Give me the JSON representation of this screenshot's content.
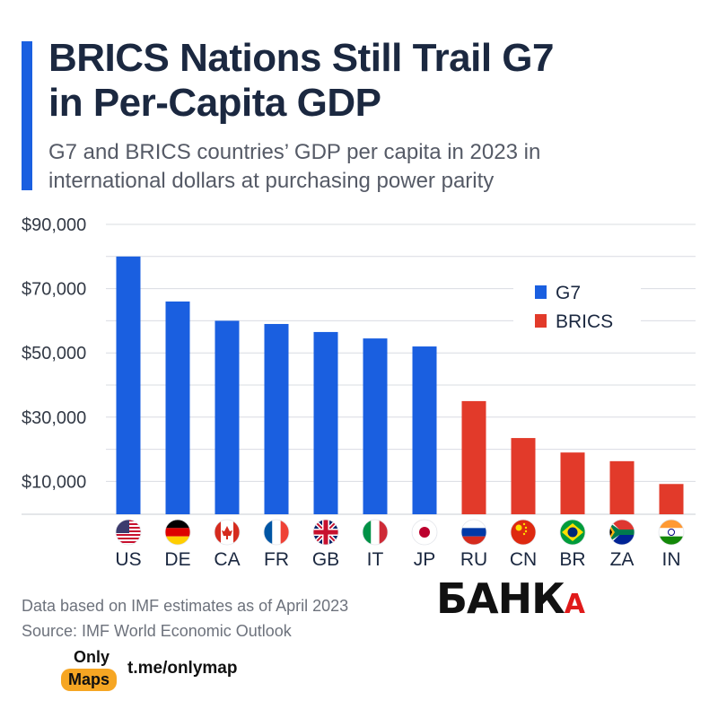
{
  "title": {
    "line1": "BRICS Nations Still Trail G7",
    "line2": "in Per-Capita GDP"
  },
  "subtitle": {
    "line1": "G7 and BRICS countries’ GDP per capita in 2023 in",
    "line2": "international dollars at purchasing power parity"
  },
  "colors": {
    "accent": "#1a5fe0",
    "g7": "#1a5fe0",
    "brics": "#e23a2a"
  },
  "chart_data": {
    "type": "bar",
    "title": "BRICS Nations Still Trail G7 in Per-Capita GDP",
    "categories": [
      "US",
      "DE",
      "CA",
      "FR",
      "GB",
      "IT",
      "JP",
      "RU",
      "CN",
      "BR",
      "ZA",
      "IN"
    ],
    "groups": [
      "G7",
      "G7",
      "G7",
      "G7",
      "G7",
      "G7",
      "G7",
      "BRICS",
      "BRICS",
      "BRICS",
      "BRICS",
      "BRICS"
    ],
    "values": [
      80000,
      66000,
      60000,
      59000,
      56500,
      54500,
      52000,
      35000,
      23500,
      19000,
      16300,
      9200
    ],
    "ylim": [
      0,
      90000
    ],
    "yticks": [
      10000,
      30000,
      50000,
      70000,
      90000
    ],
    "ytick_labels": [
      "$10,000",
      "$30,000",
      "$50,000",
      "$70,000",
      "$90,000"
    ],
    "legend": [
      {
        "name": "G7"
      },
      {
        "name": "BRICS"
      }
    ],
    "legend_position": "top-right",
    "grid": true,
    "flag_icons": [
      "flag-us-icon",
      "flag-de-icon",
      "flag-ca-icon",
      "flag-fr-icon",
      "flag-gb-icon",
      "flag-it-icon",
      "flag-jp-icon",
      "flag-ru-icon",
      "flag-cn-icon",
      "flag-br-icon",
      "flag-za-icon",
      "flag-in-icon"
    ]
  },
  "footer": {
    "note": "Data based on IMF estimates as of April 2023",
    "source": "Source: IMF World Economic Outlook"
  },
  "branding": {
    "bank_logo_main": "БАНК",
    "bank_logo_suffix": "А",
    "only_label": "Only",
    "maps_label": "Maps",
    "telegram_link": "t.me/onlymap"
  }
}
